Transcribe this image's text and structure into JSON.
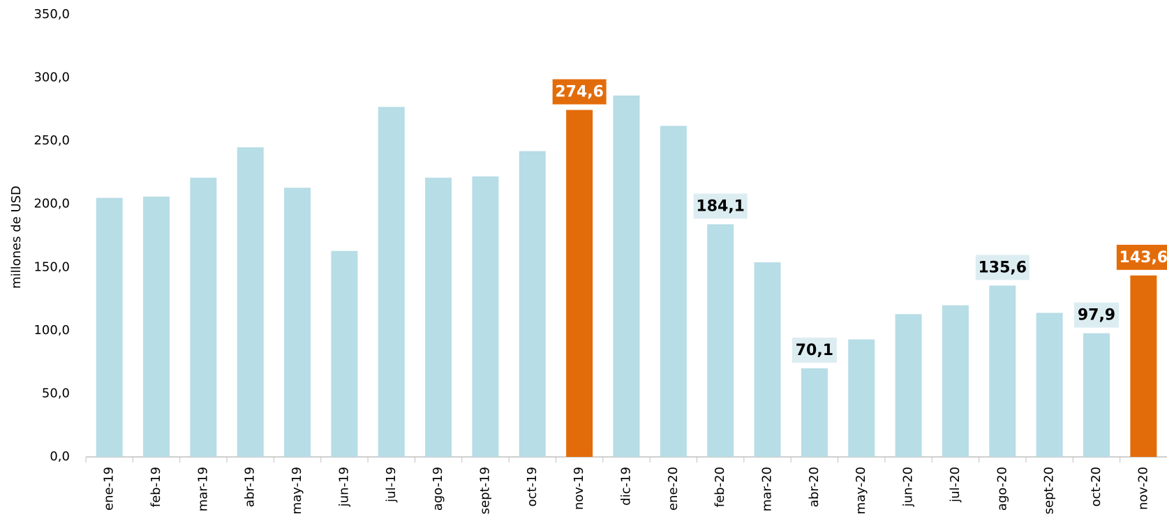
{
  "chart_data": {
    "type": "bar",
    "y_label": "millones de USD",
    "categories": [
      "ene-19",
      "feb-19",
      "mar-19",
      "abr-19",
      "may-19",
      "jun-19",
      "jul-19",
      "ago-19",
      "sept-19",
      "oct-19",
      "nov-19",
      "dic-19",
      "ene-20",
      "feb-20",
      "mar-20",
      "abr-20",
      "may-20",
      "jun-20",
      "jul-20",
      "ago-20",
      "sept-20",
      "oct-20",
      "nov-20"
    ],
    "values": [
      205,
      206,
      221,
      245,
      213,
      163,
      277,
      221,
      222,
      242,
      274.6,
      286,
      262,
      184.1,
      154,
      70.1,
      93,
      113,
      120,
      135.6,
      114,
      97.9,
      143.6
    ],
    "value_labels": [
      null,
      null,
      null,
      null,
      null,
      null,
      null,
      null,
      null,
      null,
      "274,6",
      null,
      null,
      "184,1",
      null,
      "70,1",
      null,
      null,
      null,
      "135,6",
      null,
      "97,9",
      "143,6"
    ],
    "color": "#b7dde6",
    "highlight_color": "#e36c0a",
    "highlighted": [
      10,
      22
    ],
    "ylim": [
      0,
      350
    ],
    "yticks": [
      {
        "value": 0,
        "label": "0,0"
      },
      {
        "value": 50,
        "label": "50,0"
      },
      {
        "value": 100,
        "label": "100,0"
      },
      {
        "value": 150,
        "label": "150,0"
      },
      {
        "value": 200,
        "label": "200,0"
      },
      {
        "value": 250,
        "label": "250,0"
      },
      {
        "value": 300,
        "label": "300,0"
      },
      {
        "value": 350,
        "label": "350,0"
      }
    ],
    "grid": false
  }
}
